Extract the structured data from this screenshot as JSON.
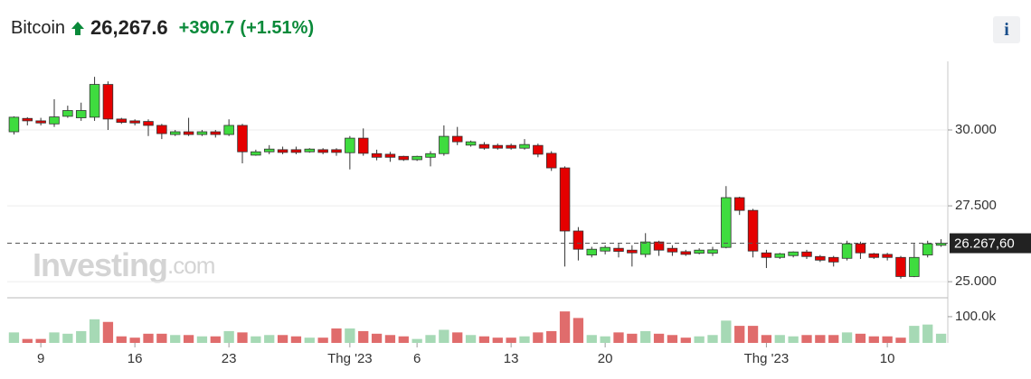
{
  "header": {
    "name": "Bitcoin",
    "price": "26,267.6",
    "change": "+390.7",
    "change_percent": "(+1.51%)",
    "info_button": "i"
  },
  "watermark": [
    "Investing",
    ".com"
  ],
  "chart_data": {
    "type": "candlestick",
    "categories": [
      null,
      null,
      "9",
      null,
      null,
      null,
      null,
      null,
      null,
      "16",
      null,
      null,
      null,
      null,
      null,
      null,
      "23",
      null,
      null,
      null,
      null,
      null,
      null,
      null,
      null,
      "Thg '23",
      null,
      null,
      null,
      null,
      "6",
      null,
      null,
      null,
      null,
      null,
      null,
      "13",
      null,
      null,
      null,
      null,
      null,
      null,
      "20",
      null,
      null,
      null,
      null,
      null,
      null,
      null,
      null,
      null,
      null,
      null,
      "Thg '23",
      null,
      null,
      null,
      null,
      null,
      null,
      null,
      null,
      "10",
      null,
      null,
      null,
      null
    ],
    "open": [
      29940,
      30380,
      30300,
      30200,
      30450,
      30400,
      30420,
      31500,
      30360,
      30300,
      30280,
      30150,
      29850,
      29940,
      29850,
      29940,
      29850,
      30150,
      29170,
      29280,
      29350,
      29350,
      29280,
      29350,
      29350,
      29250,
      29730,
      29220,
      29200,
      29130,
      29020,
      29100,
      29220,
      29790,
      29500,
      29520,
      29490,
      29490,
      29400,
      29490,
      29230,
      28750,
      26670,
      25880,
      26010,
      26100,
      26040,
      25900,
      26310,
      26100,
      25990,
      25940,
      25940,
      26130,
      27770,
      27350,
      25950,
      25800,
      25860,
      25980,
      25830,
      25800,
      25770,
      26250,
      25920,
      25900,
      25800,
      25170,
      25880,
      26200
    ],
    "high": [
      30450,
      30420,
      30400,
      31010,
      30800,
      30900,
      31750,
      31600,
      30400,
      30350,
      30350,
      30200,
      30000,
      30400,
      30000,
      30000,
      30350,
      30200,
      29350,
      29500,
      29450,
      29450,
      29400,
      29400,
      29400,
      29800,
      30050,
      29350,
      29280,
      29150,
      29150,
      29300,
      30150,
      30100,
      29650,
      29600,
      29550,
      29550,
      29700,
      29550,
      29300,
      28800,
      26800,
      26150,
      26200,
      26250,
      26200,
      26600,
      26350,
      26200,
      26050,
      26100,
      26150,
      28150,
      27800,
      27400,
      26050,
      25950,
      26000,
      26050,
      25880,
      25850,
      26350,
      26320,
      25950,
      25950,
      25850,
      26250,
      26350,
      26400
    ],
    "low": [
      29850,
      30150,
      30150,
      30100,
      30400,
      30300,
      30300,
      30000,
      30200,
      30150,
      29800,
      29700,
      29800,
      29800,
      29800,
      29750,
      29800,
      28900,
      29150,
      29200,
      29200,
      29200,
      29250,
      29200,
      29150,
      28700,
      29150,
      29000,
      28950,
      28980,
      28980,
      28800,
      29150,
      29500,
      29450,
      29350,
      29350,
      29350,
      29350,
      29100,
      28650,
      25500,
      25700,
      25800,
      25900,
      25800,
      25500,
      25800,
      25850,
      25850,
      25850,
      25900,
      25850,
      26100,
      27200,
      25800,
      25450,
      25750,
      25800,
      25750,
      25650,
      25500,
      25700,
      25750,
      25750,
      25700,
      25100,
      25150,
      25800,
      26150
    ],
    "close": [
      30420,
      30300,
      30230,
      30430,
      30640,
      30640,
      31500,
      30360,
      30250,
      30230,
      30150,
      29880,
      29940,
      29850,
      29940,
      29850,
      30150,
      29280,
      29280,
      29370,
      29260,
      29260,
      29370,
      29260,
      29260,
      29730,
      29230,
      29100,
      29100,
      29020,
      29130,
      29220,
      29790,
      29610,
      29610,
      29400,
      29400,
      29400,
      29520,
      29200,
      28750,
      26670,
      26070,
      26070,
      26130,
      26000,
      25950,
      26310,
      26040,
      25980,
      25900,
      26040,
      26050,
      27770,
      27350,
      26010,
      25800,
      25920,
      25980,
      25830,
      25710,
      25650,
      26250,
      25950,
      25800,
      25800,
      25170,
      25800,
      26250,
      26267.6
    ],
    "volume": [
      40000,
      15000,
      15000,
      40000,
      35000,
      45000,
      90000,
      80000,
      25000,
      20000,
      35000,
      35000,
      30000,
      30000,
      25000,
      25000,
      45000,
      40000,
      25000,
      30000,
      30000,
      25000,
      20000,
      20000,
      55000,
      55000,
      45000,
      35000,
      30000,
      25000,
      15000,
      30000,
      50000,
      40000,
      30000,
      25000,
      20000,
      20000,
      25000,
      40000,
      45000,
      120000,
      95000,
      30000,
      25000,
      40000,
      35000,
      45000,
      35000,
      30000,
      20000,
      25000,
      30000,
      85000,
      65000,
      65000,
      30000,
      30000,
      25000,
      30000,
      30000,
      30000,
      40000,
      35000,
      25000,
      25000,
      20000,
      65000,
      70000,
      35000
    ],
    "up_color": "#3fdc3f",
    "down_color": "#e50000",
    "volume_up_color": "#a6d9b5",
    "volume_down_color": "#e06c6c",
    "ylim": [
      24470,
      32260
    ],
    "yticks": [
      {
        "value": 25000,
        "label": "25.000"
      },
      {
        "value": 27500,
        "label": "27.500"
      },
      {
        "value": 30000,
        "label": "30.000"
      }
    ],
    "y2lim": [
      0,
      172000
    ],
    "y2ticks": [
      {
        "value": 100000,
        "label": "100.0k"
      }
    ],
    "last_price": {
      "value": 26267.6,
      "label": "26.267,60"
    },
    "grid": true
  }
}
